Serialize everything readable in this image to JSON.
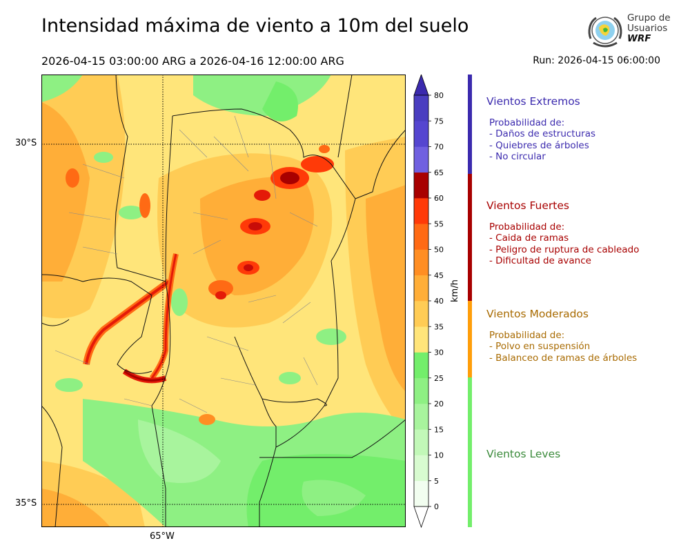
{
  "header": {
    "title": "Intensidad máxima de viento a 10m del suelo",
    "period": "2026-04-15 03:00:00 ARG  a  2026-04-16 12:00:00 ARG",
    "run": "Run: 2026-04-15 06:00:00"
  },
  "logo": {
    "line1": "Grupo de",
    "line2": "Usuarios",
    "line3": "WRF"
  },
  "map": {
    "latitude_labels": [
      "30°S",
      "35°S"
    ],
    "longitude_labels": [
      "65°W"
    ]
  },
  "colorbar": {
    "unit": "km/h",
    "ticks": [
      "0",
      "5",
      "10",
      "15",
      "20",
      "25",
      "30",
      "35",
      "40",
      "45",
      "50",
      "55",
      "60",
      "65",
      "70",
      "75",
      "80"
    ],
    "colors": [
      "#f2fef0",
      "#d8fbd0",
      "#c2f8b8",
      "#a8f49d",
      "#8ef083",
      "#73ee6b",
      "#ffe57a",
      "#ffcc55",
      "#ffae38",
      "#ff8e23",
      "#ff6a14",
      "#ff3a08",
      "#e41a08",
      "#c80c08",
      "#a80000",
      "#8a0000",
      "#7060e0",
      "#5546d0",
      "#4a3ec0",
      "#3b2aae"
    ]
  },
  "categories": [
    {
      "name": "Vientos Extremos",
      "color": "#3b2aae",
      "lines": [
        "Probabilidad de:",
        "- Daños de estructuras",
        "- Quiebres de árboles",
        "- No circular"
      ]
    },
    {
      "name": "Vientos Fuertes",
      "color": "#a80000",
      "lines": [
        "Probabilidad de:",
        "- Caida de ramas",
        "- Peligro de ruptura de cableado",
        "- Dificultad de avance"
      ]
    },
    {
      "name": "Vientos Moderados",
      "color": "#a86a00",
      "lines": [
        "Probabilidad de:",
        "- Polvo en suspensión",
        "- Balanceo de ramas de árboles"
      ]
    },
    {
      "name": "Vientos Leves",
      "color": "#3a8a3a",
      "lines": []
    }
  ]
}
